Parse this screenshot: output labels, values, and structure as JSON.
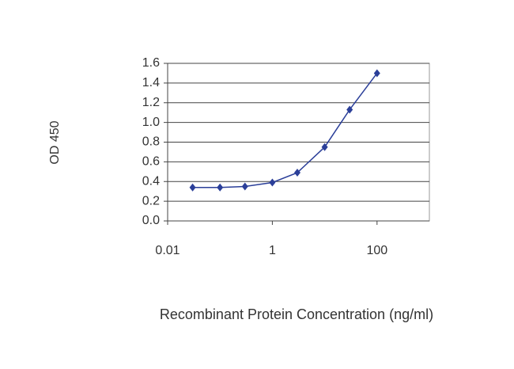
{
  "chart_data": {
    "type": "line",
    "log_x": true,
    "grid": true,
    "color": "#2b3f99",
    "x_label": "Recombinant Protein Concentration (ng/ml)",
    "y_label": "OD 450",
    "x": [
      0.03,
      0.1,
      0.3,
      1,
      3,
      10,
      30,
      100
    ],
    "values": [
      0.34,
      0.34,
      0.35,
      0.39,
      0.49,
      0.75,
      1.13,
      1.5
    ],
    "xlim": [
      0.01,
      1000
    ],
    "xticks": [
      0.01,
      1,
      100
    ],
    "ylim": [
      0,
      1.6
    ],
    "yticks": [
      {
        "value": 0,
        "label": "0.0"
      },
      0.2,
      0.4,
      0.6,
      0.8,
      {
        "value": 1,
        "label": "1.0"
      },
      1.2,
      1.4,
      1.6
    ]
  }
}
